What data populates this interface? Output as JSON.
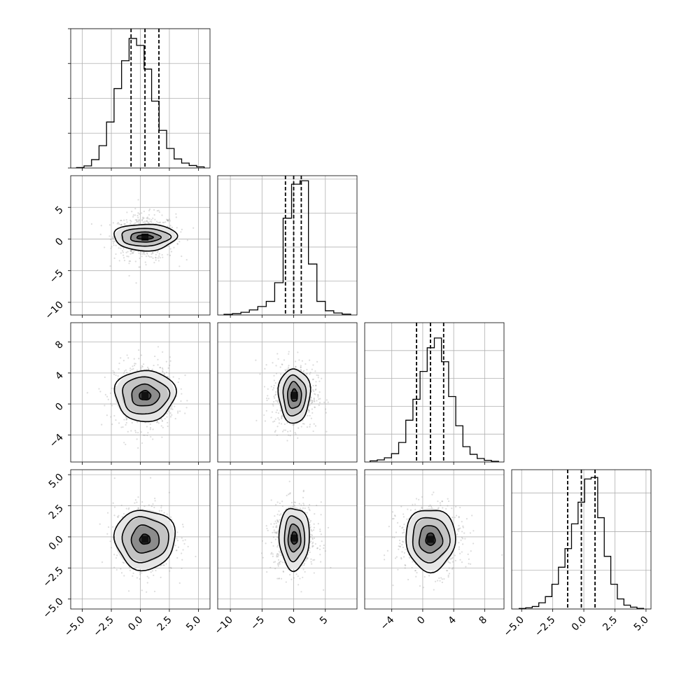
{
  "chart_data": {
    "type": "corner",
    "grid": true,
    "parameters": [
      {
        "index": 0,
        "lim": [
          -6.0,
          6.0
        ],
        "ticks": [
          -5.0,
          -2.5,
          0.0,
          2.5,
          5.0
        ],
        "tick_labels": [
          "−5.0",
          "−2.5",
          "0.0",
          "2.5",
          "5.0"
        ],
        "mean": 0.4,
        "std": 1.1,
        "quantiles": [
          -0.8,
          0.4,
          1.6
        ]
      },
      {
        "index": 1,
        "lim": [
          -12,
          10
        ],
        "ticks": [
          -10,
          -5,
          0,
          5
        ],
        "tick_labels": [
          "−10",
          "−5",
          "0",
          "5"
        ],
        "mean": 0.0,
        "std": 1.5,
        "quantiles": [
          -1.3,
          0.0,
          1.2
        ]
      },
      {
        "index": 2,
        "lim": [
          -7.5,
          10.5
        ],
        "ticks": [
          -4,
          0,
          4,
          8
        ],
        "tick_labels": [
          "−4",
          "0",
          "4",
          "8"
        ],
        "mean": 1.0,
        "std": 1.8,
        "quantiles": [
          -0.8,
          1.0,
          2.7
        ]
      },
      {
        "index": 3,
        "lim": [
          -5.8,
          5.4
        ],
        "ticks": [
          -5.0,
          -2.5,
          0.0,
          2.5,
          5.0
        ],
        "tick_labels": [
          "−5.0",
          "−2.5",
          "0.0",
          "2.5",
          "5.0"
        ],
        "mean": -0.2,
        "std": 1.15,
        "quantiles": [
          -1.3,
          -0.2,
          0.9
        ]
      }
    ],
    "histograms": [
      {
        "param": 0,
        "bins": [
          -5.5,
          5.5
        ],
        "counts": [
          0.3,
          1.5,
          6,
          16,
          33,
          57,
          77,
          93,
          88,
          71,
          48,
          27,
          14,
          6.5,
          3.5,
          1.8,
          0.8
        ],
        "ymax": 100,
        "yticks": [
          0,
          25,
          50,
          75,
          100
        ]
      },
      {
        "param": 1,
        "bins": [
          -11,
          9
        ],
        "counts": [
          0.4,
          0.8,
          1.6,
          3,
          5,
          8,
          19,
          57,
          77,
          79,
          30,
          8,
          2.5,
          1.2,
          0.5
        ],
        "ymax": 82,
        "yticks": [
          0,
          20,
          40,
          60,
          80
        ]
      },
      {
        "param": 2,
        "bins": [
          -6.8,
          9.8
        ],
        "counts": [
          0.8,
          1.5,
          3,
          6,
          14,
          30,
          45,
          65,
          82,
          89,
          72,
          47,
          26,
          11,
          5.5,
          2.5,
          1.2,
          0.5
        ],
        "ymax": 100,
        "yticks": [
          0,
          20,
          40,
          60,
          80
        ]
      },
      {
        "param": 3,
        "bins": [
          -5.2,
          4.8
        ],
        "counts": [
          0.3,
          0.8,
          1.6,
          4,
          8,
          16,
          27,
          39,
          55,
          69,
          84,
          85,
          59,
          34,
          16,
          6.5,
          2.5,
          1.2,
          0.4
        ],
        "ymax": 90,
        "yticks": [
          0,
          25,
          50,
          75
        ]
      }
    ],
    "pairs": [
      {
        "x": 0,
        "y": 1,
        "center": [
          0.4,
          0.3
        ],
        "contour_half_widths": [
          [
            0.7,
            0.35
          ],
          [
            1.3,
            0.8
          ],
          [
            2.1,
            1.4
          ],
          [
            2.7,
            2.1
          ]
        ]
      },
      {
        "x": 0,
        "y": 2,
        "center": [
          0.4,
          1.1
        ],
        "contour_half_widths": [
          [
            0.5,
            0.6
          ],
          [
            1.2,
            1.4
          ],
          [
            2.0,
            2.4
          ],
          [
            2.6,
            3.3
          ]
        ]
      },
      {
        "x": 1,
        "y": 2,
        "center": [
          0.1,
          1.1
        ],
        "contour_half_widths": [
          [
            0.5,
            0.8
          ],
          [
            1.1,
            1.7
          ],
          [
            1.8,
            2.6
          ],
          [
            2.5,
            3.5
          ]
        ]
      },
      {
        "x": 0,
        "y": 3,
        "center": [
          0.4,
          -0.2
        ],
        "contour_half_widths": [
          [
            0.45,
            0.4
          ],
          [
            1.2,
            1.1
          ],
          [
            2.0,
            1.8
          ],
          [
            2.6,
            2.4
          ]
        ]
      },
      {
        "x": 1,
        "y": 3,
        "center": [
          0.1,
          -0.1
        ],
        "contour_half_widths": [
          [
            0.5,
            0.5
          ],
          [
            1.0,
            1.1
          ],
          [
            1.6,
            1.8
          ],
          [
            2.4,
            2.5
          ]
        ]
      },
      {
        "x": 2,
        "y": 3,
        "center": [
          1.0,
          -0.2
        ],
        "contour_half_widths": [
          [
            0.6,
            0.5
          ],
          [
            1.5,
            1.1
          ],
          [
            2.4,
            1.8
          ],
          [
            3.2,
            2.5
          ]
        ]
      }
    ]
  }
}
